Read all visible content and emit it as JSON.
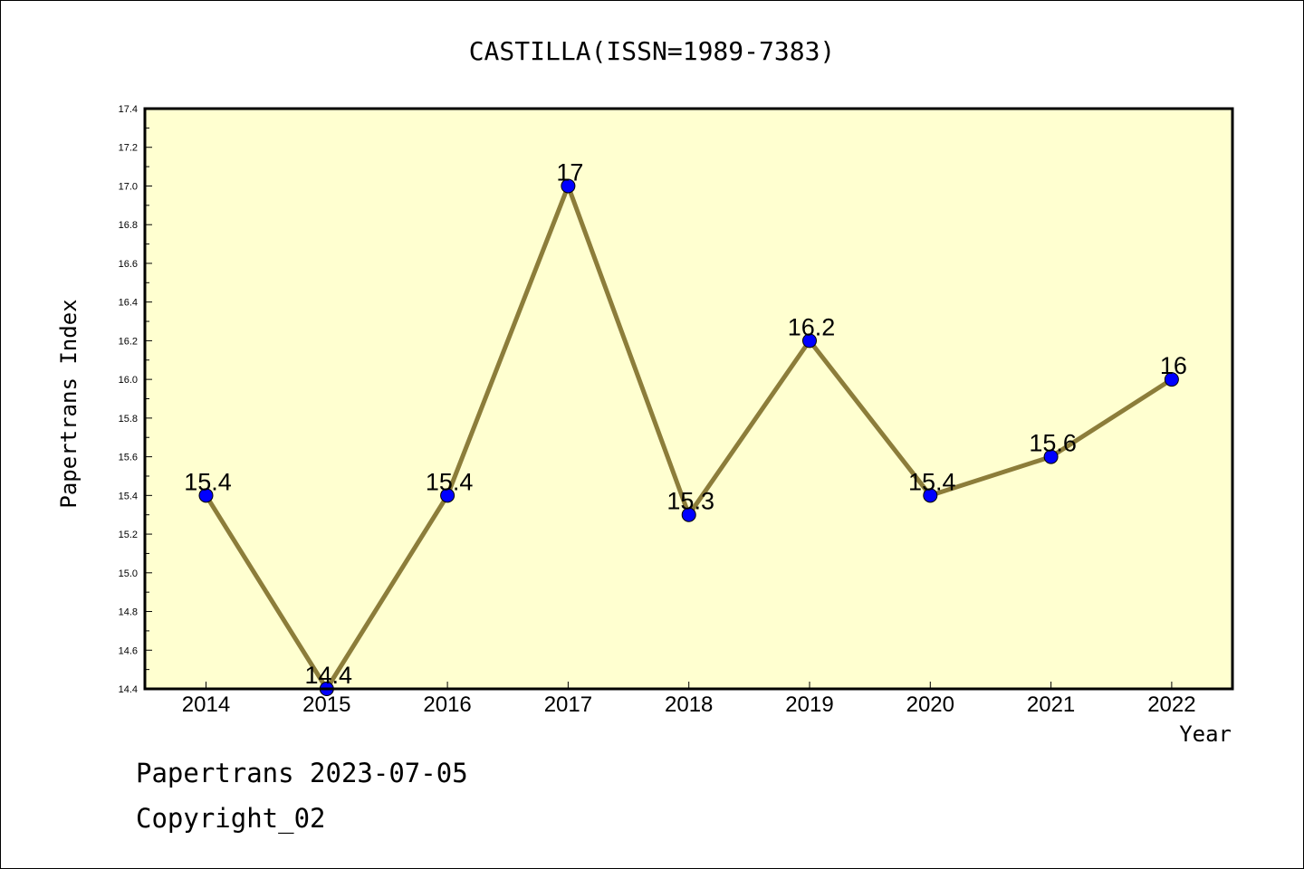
{
  "chart_data": {
    "type": "line",
    "title": "CASTILLA(ISSN=1989-7383)",
    "xlabel": "Year",
    "ylabel": "Papertrans Index",
    "categories": [
      "2014",
      "2015",
      "2016",
      "2017",
      "2018",
      "2019",
      "2020",
      "2021",
      "2022"
    ],
    "series": [
      {
        "values": [
          15.4,
          14.4,
          15.4,
          17,
          15.3,
          16.2,
          15.4,
          15.6,
          16
        ],
        "data_labels": [
          "15.4",
          "14.4",
          "15.4",
          "17",
          "15.3",
          "16.2",
          "15.4",
          "15.6",
          "16"
        ]
      }
    ],
    "ylim": [
      14.4,
      17.4
    ],
    "yticks": [
      "14.4",
      "14.6",
      "14.8",
      "15.0",
      "15.2",
      "15.4",
      "15.6",
      "15.8",
      "16.0",
      "16.2",
      "16.4",
      "16.6",
      "16.8",
      "17.0",
      "17.2",
      "17.4"
    ],
    "grid": false,
    "colors": {
      "plot_background": "#ffffd0",
      "line": "#8c7d3a",
      "marker": "#0000ff",
      "axis": "#000000"
    }
  },
  "footer": {
    "line1": "Papertrans 2023-07-05",
    "line2": "Copyright_02"
  }
}
